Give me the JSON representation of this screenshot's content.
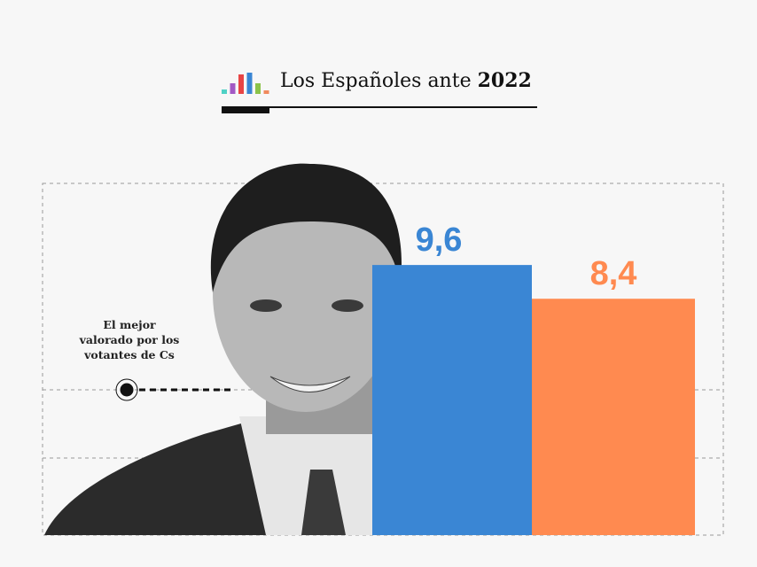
{
  "header": {
    "title_regular": "Los Españoles ante ",
    "title_bold": "2022",
    "logo_colors": [
      "#4fd1c5",
      "#a259c4",
      "#e84545",
      "#3a86d4",
      "#8bc34a",
      "#f08a5d"
    ]
  },
  "annotation": {
    "text": "El mejor valorado por los votantes de Cs"
  },
  "chart_data": {
    "type": "bar",
    "categories": [
      "",
      ""
    ],
    "values": [
      9.6,
      8.4
    ],
    "data_labels": [
      "9,6",
      "8,4"
    ],
    "colors": [
      "#3a86d4",
      "#ff8a50"
    ],
    "ylim": [
      0,
      12.5
    ],
    "grid": true,
    "title": "",
    "xlabel": "",
    "ylabel": ""
  }
}
